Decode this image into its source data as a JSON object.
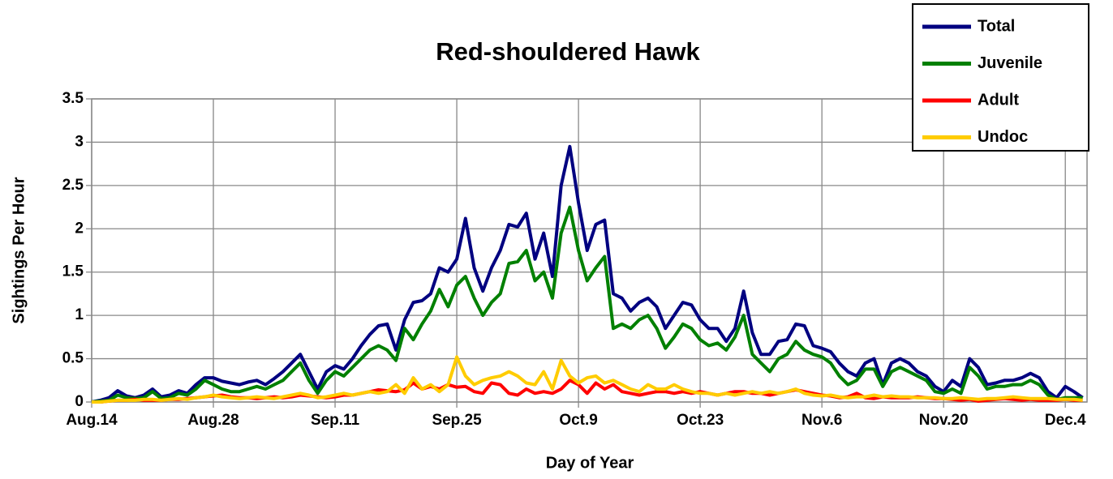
{
  "chart_data": {
    "type": "line",
    "title": "Red-shouldered Hawk",
    "x_label": "Day of Year",
    "y_label": "Sightings Per Hour",
    "x": [
      226,
      227,
      228,
      229,
      230,
      231,
      232,
      233,
      234,
      235,
      236,
      237,
      238,
      239,
      240,
      241,
      242,
      243,
      244,
      245,
      246,
      247,
      248,
      249,
      250,
      251,
      252,
      253,
      254,
      255,
      256,
      257,
      258,
      259,
      260,
      261,
      262,
      263,
      264,
      265,
      266,
      267,
      268,
      269,
      270,
      271,
      272,
      273,
      274,
      275,
      276,
      277,
      278,
      279,
      280,
      281,
      282,
      283,
      284,
      285,
      286,
      287,
      288,
      289,
      290,
      291,
      292,
      293,
      294,
      295,
      296,
      297,
      298,
      299,
      300,
      301,
      302,
      303,
      304,
      305,
      306,
      307,
      308,
      309,
      310,
      311,
      312,
      313,
      314,
      315,
      316,
      317,
      318,
      319,
      320,
      321,
      322,
      323,
      324,
      325,
      326,
      327,
      328,
      329,
      330,
      331,
      332,
      333,
      334,
      335,
      336,
      337,
      338,
      339,
      340
    ],
    "xlim": [
      226,
      340.5
    ],
    "xticks": [
      {
        "value": 226,
        "label": "Aug.14"
      },
      {
        "value": 240,
        "label": "Aug.28"
      },
      {
        "value": 254,
        "label": "Sep.11"
      },
      {
        "value": 268,
        "label": "Sep.25"
      },
      {
        "value": 282,
        "label": "Oct.9"
      },
      {
        "value": 296,
        "label": "Oct.23"
      },
      {
        "value": 310,
        "label": "Nov.6"
      },
      {
        "value": 324,
        "label": "Nov.20"
      },
      {
        "value": 338,
        "label": "Dec.4"
      }
    ],
    "ylim": [
      0,
      3.5
    ],
    "yticks": [
      0,
      0.5,
      1,
      1.5,
      2,
      2.5,
      3,
      3.5
    ],
    "grid": true,
    "legend": "top-right",
    "series": [
      {
        "name": "Total",
        "color": "#000080",
        "values": [
          0,
          0.02,
          0.05,
          0.13,
          0.07,
          0.05,
          0.08,
          0.15,
          0.06,
          0.08,
          0.13,
          0.1,
          0.2,
          0.28,
          0.28,
          0.24,
          0.22,
          0.2,
          0.23,
          0.25,
          0.2,
          0.27,
          0.35,
          0.45,
          0.55,
          0.35,
          0.15,
          0.35,
          0.42,
          0.38,
          0.5,
          0.65,
          0.78,
          0.88,
          0.9,
          0.6,
          0.95,
          1.15,
          1.17,
          1.25,
          1.55,
          1.5,
          1.65,
          2.12,
          1.55,
          1.28,
          1.55,
          1.75,
          2.05,
          2.02,
          2.18,
          1.65,
          1.95,
          1.45,
          2.5,
          2.95,
          2.3,
          1.75,
          2.05,
          2.1,
          1.25,
          1.2,
          1.05,
          1.15,
          1.2,
          1.1,
          0.85,
          1.0,
          1.15,
          1.12,
          0.95,
          0.85,
          0.85,
          0.7,
          0.85,
          1.28,
          0.8,
          0.55,
          0.55,
          0.7,
          0.72,
          0.9,
          0.88,
          0.65,
          0.62,
          0.58,
          0.45,
          0.35,
          0.3,
          0.45,
          0.5,
          0.2,
          0.45,
          0.5,
          0.45,
          0.35,
          0.3,
          0.18,
          0.12,
          0.25,
          0.18,
          0.5,
          0.4,
          0.2,
          0.22,
          0.25,
          0.25,
          0.28,
          0.33,
          0.28,
          0.12,
          0.05,
          0.18,
          0.12,
          0.05
        ]
      },
      {
        "name": "Juvenile",
        "color": "#008000",
        "values": [
          0,
          0.01,
          0.02,
          0.08,
          0.05,
          0.04,
          0.05,
          0.12,
          0.04,
          0.05,
          0.1,
          0.08,
          0.15,
          0.25,
          0.2,
          0.15,
          0.12,
          0.12,
          0.15,
          0.18,
          0.15,
          0.2,
          0.25,
          0.35,
          0.45,
          0.25,
          0.1,
          0.25,
          0.35,
          0.3,
          0.4,
          0.5,
          0.6,
          0.65,
          0.6,
          0.48,
          0.85,
          0.72,
          0.9,
          1.05,
          1.3,
          1.1,
          1.35,
          1.45,
          1.2,
          1.0,
          1.15,
          1.25,
          1.6,
          1.62,
          1.75,
          1.4,
          1.5,
          1.2,
          1.95,
          2.25,
          1.75,
          1.4,
          1.55,
          1.68,
          0.85,
          0.9,
          0.85,
          0.95,
          1.0,
          0.85,
          0.62,
          0.75,
          0.9,
          0.85,
          0.72,
          0.65,
          0.68,
          0.6,
          0.75,
          1.0,
          0.55,
          0.45,
          0.35,
          0.5,
          0.55,
          0.7,
          0.6,
          0.55,
          0.52,
          0.45,
          0.3,
          0.2,
          0.25,
          0.38,
          0.38,
          0.18,
          0.35,
          0.4,
          0.35,
          0.3,
          0.25,
          0.12,
          0.1,
          0.15,
          0.1,
          0.4,
          0.3,
          0.15,
          0.18,
          0.18,
          0.2,
          0.2,
          0.25,
          0.2,
          0.08,
          0.03,
          0.05,
          0.05,
          0.05
        ]
      },
      {
        "name": "Adult",
        "color": "#ff0000",
        "values": [
          0,
          0,
          0.01,
          0.02,
          0.02,
          0.03,
          0.02,
          0.02,
          0.02,
          0.03,
          0.03,
          0.04,
          0.05,
          0.06,
          0.07,
          0.08,
          0.06,
          0.05,
          0.05,
          0.04,
          0.05,
          0.06,
          0.05,
          0.06,
          0.08,
          0.07,
          0.06,
          0.05,
          0.06,
          0.08,
          0.08,
          0.1,
          0.12,
          0.14,
          0.13,
          0.12,
          0.14,
          0.22,
          0.15,
          0.18,
          0.15,
          0.2,
          0.17,
          0.18,
          0.12,
          0.1,
          0.22,
          0.2,
          0.1,
          0.08,
          0.15,
          0.1,
          0.12,
          0.1,
          0.15,
          0.25,
          0.2,
          0.1,
          0.22,
          0.15,
          0.2,
          0.12,
          0.1,
          0.08,
          0.1,
          0.12,
          0.12,
          0.1,
          0.12,
          0.1,
          0.12,
          0.1,
          0.08,
          0.1,
          0.12,
          0.12,
          0.1,
          0.1,
          0.08,
          0.1,
          0.12,
          0.14,
          0.12,
          0.1,
          0.08,
          0.07,
          0.05,
          0.06,
          0.1,
          0.05,
          0.04,
          0.06,
          0.05,
          0.05,
          0.05,
          0.06,
          0.05,
          0.04,
          0.04,
          0.03,
          0.02,
          0.03,
          0.01,
          0.02,
          0.03,
          0.04,
          0.03,
          0.02,
          0.03,
          0.02,
          0.02,
          0.02,
          0.03,
          0.02,
          0.02
        ]
      },
      {
        "name": "Undoc",
        "color": "#ffcc00",
        "values": [
          0,
          0,
          0.01,
          0.02,
          0.02,
          0.02,
          0.03,
          0.03,
          0.02,
          0.03,
          0.04,
          0.03,
          0.05,
          0.06,
          0.08,
          0.06,
          0.05,
          0.04,
          0.05,
          0.06,
          0.05,
          0.04,
          0.06,
          0.08,
          0.1,
          0.08,
          0.05,
          0.06,
          0.08,
          0.1,
          0.08,
          0.1,
          0.12,
          0.1,
          0.12,
          0.2,
          0.1,
          0.28,
          0.15,
          0.2,
          0.12,
          0.2,
          0.52,
          0.3,
          0.2,
          0.25,
          0.28,
          0.3,
          0.35,
          0.3,
          0.22,
          0.2,
          0.35,
          0.15,
          0.48,
          0.3,
          0.22,
          0.28,
          0.3,
          0.22,
          0.25,
          0.2,
          0.15,
          0.12,
          0.2,
          0.15,
          0.15,
          0.2,
          0.15,
          0.12,
          0.1,
          0.1,
          0.08,
          0.1,
          0.08,
          0.1,
          0.12,
          0.1,
          0.12,
          0.1,
          0.12,
          0.15,
          0.1,
          0.08,
          0.07,
          0.08,
          0.06,
          0.05,
          0.06,
          0.06,
          0.08,
          0.06,
          0.07,
          0.06,
          0.06,
          0.05,
          0.05,
          0.05,
          0.04,
          0.04,
          0.05,
          0.04,
          0.03,
          0.04,
          0.04,
          0.05,
          0.06,
          0.05,
          0.04,
          0.04,
          0.04,
          0.03,
          0.03,
          0.03,
          0.02
        ]
      }
    ]
  }
}
